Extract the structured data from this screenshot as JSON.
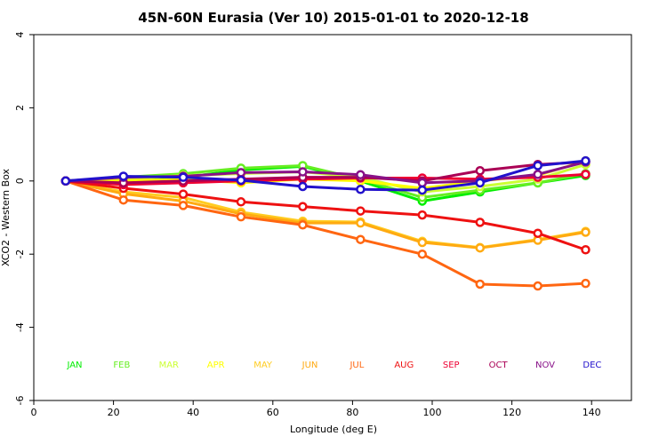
{
  "chart_data": {
    "type": "line",
    "title": "45N-60N Eurasia (Ver 10)   2015-01-01 to 2020-12-18",
    "xlabel": "Longitude (deg E)",
    "ylabel": "XCO2 - Western Box",
    "xlim": [
      0,
      150
    ],
    "ylim": [
      -6,
      4
    ],
    "xticks": [
      "0",
      "20",
      "40",
      "60",
      "80",
      "100",
      "120",
      "140"
    ],
    "yticks": [
      "-6",
      "-4",
      "-2",
      "0",
      "2",
      "4"
    ],
    "x": [
      8,
      22.5,
      37.5,
      52,
      67.5,
      82,
      97.5,
      112,
      126.5,
      138.5
    ],
    "series": [
      {
        "name": "JAN",
        "color": "#00ee00",
        "values": [
          0,
          -0.05,
          0.1,
          0.3,
          0.4,
          0.0,
          -0.55,
          -0.3,
          -0.05,
          0.15
        ]
      },
      {
        "name": "FEB",
        "color": "#66ee22",
        "values": [
          0,
          0.1,
          0.2,
          0.35,
          0.42,
          0.05,
          -0.45,
          -0.25,
          -0.05,
          0.2
        ]
      },
      {
        "name": "MAR",
        "color": "#ccff33",
        "values": [
          0,
          0.05,
          0.15,
          0.2,
          0.25,
          0.1,
          -0.3,
          -0.15,
          0.05,
          0.45
        ]
      },
      {
        "name": "APR",
        "color": "#ffff00",
        "values": [
          0,
          0.0,
          0.05,
          -0.05,
          0.05,
          0.0,
          -0.2,
          0.0,
          0.15,
          0.55
        ]
      },
      {
        "name": "MAY",
        "color": "#ffcc22",
        "values": [
          0,
          -0.3,
          -0.45,
          -0.85,
          -1.1,
          -1.12,
          -1.65,
          -1.82,
          -1.6,
          -1.38
        ]
      },
      {
        "name": "JUN",
        "color": "#ffaa11",
        "values": [
          0,
          -0.35,
          -0.55,
          -0.9,
          -1.15,
          -1.15,
          -1.68,
          -1.83,
          -1.62,
          -1.4
        ]
      },
      {
        "name": "JUL",
        "color": "#ff6611",
        "values": [
          0,
          -0.52,
          -0.67,
          -0.98,
          -1.2,
          -1.6,
          -2.0,
          -2.82,
          -2.87,
          -2.8
        ]
      },
      {
        "name": "AUG",
        "color": "#ee1111",
        "values": [
          0,
          -0.2,
          -0.36,
          -0.57,
          -0.7,
          -0.82,
          -0.93,
          -1.13,
          -1.43,
          -1.88
        ]
      },
      {
        "name": "SEP",
        "color": "#ee0033",
        "values": [
          0,
          -0.1,
          -0.05,
          0.0,
          0.05,
          0.08,
          0.08,
          0.05,
          0.1,
          0.18
        ]
      },
      {
        "name": "OCT",
        "color": "#aa0055",
        "values": [
          0,
          -0.05,
          0.0,
          0.05,
          0.1,
          0.1,
          0.0,
          0.28,
          0.45,
          0.52
        ]
      },
      {
        "name": "NOV",
        "color": "#881188",
        "values": [
          0,
          0.1,
          0.13,
          0.23,
          0.25,
          0.17,
          -0.05,
          0.0,
          0.18,
          0.52
        ]
      },
      {
        "name": "DEC",
        "color": "#2211cc",
        "values": [
          0,
          0.13,
          0.1,
          0.02,
          -0.15,
          -0.23,
          -0.25,
          -0.05,
          0.42,
          0.55
        ]
      }
    ]
  }
}
